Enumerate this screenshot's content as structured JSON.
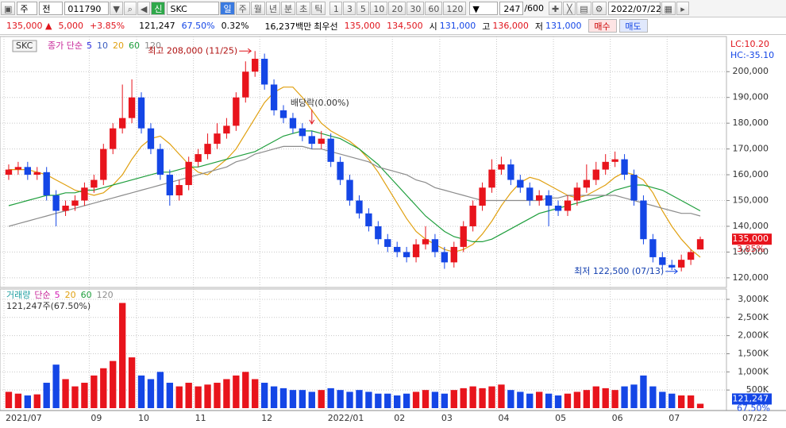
{
  "toolbar": {
    "market": "주",
    "scope": "전",
    "code": "011790",
    "badge": "신",
    "name": "SKC",
    "periods": [
      "일",
      "주",
      "월",
      "년",
      "분",
      "초",
      "틱"
    ],
    "intervals": [
      "1",
      "3",
      "5",
      "10",
      "20",
      "30",
      "60",
      "120"
    ],
    "count": "247",
    "total": "/600",
    "date": "2022/07/22"
  },
  "quote": {
    "price": "135,000 ▲",
    "change": "5,000",
    "rate": "+3.85%",
    "volume": "121,247",
    "volume_rate": "67.50%",
    "turnover": "0.32%",
    "amount": "16,237백만",
    "best_label": "최우선",
    "ask": "135,000",
    "bid": "134,500",
    "open_label": "시",
    "open": "131,000",
    "high_label": "고",
    "high": "136,000",
    "low_label": "저",
    "low": "131,000",
    "buy": "매수",
    "sell": "매도"
  },
  "chart_data": [
    {
      "type": "candlestick",
      "name": "SKC",
      "ma_label": "종가 단순",
      "categories": [
        "2021/07",
        null,
        null,
        null,
        null,
        null,
        null,
        null,
        null,
        "09",
        null,
        null,
        null,
        null,
        "10",
        null,
        null,
        null,
        null,
        null,
        "11",
        null,
        null,
        null,
        null,
        null,
        null,
        "12",
        null,
        null,
        null,
        null,
        null,
        null,
        "2022/01",
        null,
        null,
        null,
        null,
        null,
        null,
        "02",
        null,
        null,
        null,
        null,
        "03",
        null,
        null,
        null,
        null,
        null,
        "04",
        null,
        null,
        null,
        null,
        null,
        "05",
        null,
        null,
        null,
        null,
        null,
        "06",
        null,
        null,
        null,
        null,
        null,
        "07",
        null,
        null,
        null
      ],
      "open": [
        160000,
        162000,
        163000,
        160000,
        161000,
        152000,
        146000,
        148000,
        150000,
        155000,
        158000,
        170000,
        178000,
        182000,
        190000,
        178000,
        170000,
        160000,
        152000,
        156000,
        165000,
        168000,
        172000,
        176000,
        179000,
        190000,
        200000,
        205000,
        195000,
        185000,
        182000,
        178000,
        175000,
        172000,
        174000,
        165000,
        158000,
        150000,
        145000,
        140000,
        135000,
        132000,
        130000,
        128000,
        133000,
        135000,
        130000,
        126000,
        132000,
        140000,
        148000,
        155000,
        162000,
        164000,
        158000,
        155000,
        150000,
        152000,
        148000,
        146000,
        150000,
        155000,
        158000,
        162000,
        165000,
        166000,
        160000,
        150000,
        135000,
        128000,
        125000,
        124000,
        127000,
        131000
      ],
      "high": [
        164000,
        165000,
        165000,
        163000,
        163000,
        154000,
        150000,
        152000,
        157000,
        160000,
        172000,
        180000,
        195000,
        197000,
        192000,
        180000,
        172000,
        162000,
        158000,
        167000,
        170000,
        176000,
        180000,
        182000,
        192000,
        204000,
        208000,
        207000,
        197000,
        187000,
        184000,
        180000,
        177000,
        177000,
        176000,
        167000,
        160000,
        152000,
        147000,
        142000,
        137000,
        134000,
        132000,
        135000,
        140000,
        137000,
        132000,
        134000,
        142000,
        150000,
        157000,
        166000,
        167000,
        166000,
        160000,
        157000,
        154000,
        154000,
        150000,
        152000,
        157000,
        164000,
        165000,
        168000,
        169000,
        168000,
        162000,
        152000,
        137000,
        130000,
        127000,
        129000,
        131000,
        136000
      ],
      "low": [
        158000,
        160000,
        158000,
        158000,
        150000,
        140000,
        144000,
        146000,
        148000,
        153000,
        156000,
        168000,
        176000,
        180000,
        176000,
        168000,
        158000,
        148000,
        150000,
        154000,
        163000,
        166000,
        170000,
        174000,
        177000,
        188000,
        198000,
        193000,
        183000,
        180000,
        176000,
        173000,
        170000,
        170000,
        163000,
        156000,
        148000,
        143000,
        138000,
        133000,
        130000,
        128000,
        126000,
        126000,
        131000,
        128000,
        123500,
        124000,
        130000,
        138000,
        146000,
        153000,
        160000,
        156000,
        153000,
        148000,
        148000,
        140000,
        144000,
        144000,
        148000,
        153000,
        156000,
        160000,
        163000,
        158000,
        148000,
        133000,
        126000,
        123500,
        123000,
        122500,
        125000,
        131000
      ],
      "close": [
        162000,
        163000,
        160000,
        161000,
        152000,
        146000,
        148000,
        150000,
        155000,
        158000,
        170000,
        178000,
        182000,
        190000,
        178000,
        170000,
        160000,
        152000,
        156000,
        165000,
        168000,
        172000,
        176000,
        179000,
        190000,
        200000,
        205000,
        195000,
        185000,
        182000,
        178000,
        175000,
        172000,
        174000,
        165000,
        158000,
        150000,
        145000,
        140000,
        135000,
        132000,
        130000,
        128000,
        133000,
        135000,
        130000,
        126000,
        132000,
        140000,
        148000,
        155000,
        162000,
        164000,
        158000,
        155000,
        150000,
        152000,
        148000,
        146000,
        150000,
        155000,
        158000,
        162000,
        165000,
        166000,
        160000,
        150000,
        135000,
        128000,
        125000,
        124000,
        127000,
        130000,
        135000
      ],
      "up_color": "#e8141c",
      "down_color": "#1446e6",
      "series": [
        {
          "name": "5",
          "color": "#2a2ae0"
        },
        {
          "name": "10",
          "color": "#3a5cc0"
        },
        {
          "name": "20",
          "color": "#e0a010",
          "values": [
            162000,
            162000,
            162000,
            161000,
            160000,
            158000,
            156000,
            154000,
            153000,
            152000,
            153000,
            156000,
            160000,
            166000,
            171000,
            174000,
            175000,
            172000,
            168000,
            164000,
            161000,
            160000,
            163000,
            166000,
            170000,
            176000,
            182000,
            188000,
            192000,
            194000,
            194000,
            190000,
            185000,
            180000,
            177000,
            175000,
            173000,
            170000,
            166000,
            161000,
            155000,
            149000,
            143000,
            138000,
            135000,
            133000,
            131000,
            130000,
            131000,
            133000,
            137000,
            142000,
            148000,
            153000,
            157000,
            159000,
            158000,
            156000,
            154000,
            152000,
            151000,
            152000,
            154000,
            156000,
            159000,
            161000,
            160000,
            158000,
            153000,
            146000,
            140000,
            135000,
            131000,
            128000
          ]
        },
        {
          "name": "60",
          "color": "#1e9e3c",
          "values": [
            148000,
            149000,
            150000,
            151000,
            152000,
            152000,
            153000,
            153000,
            154000,
            154000,
            155000,
            156000,
            157000,
            158000,
            159000,
            160000,
            161000,
            161000,
            162000,
            163000,
            163000,
            164000,
            165000,
            166000,
            167000,
            168000,
            169000,
            171000,
            173000,
            175000,
            176000,
            177000,
            177000,
            176000,
            175000,
            174000,
            172000,
            170000,
            167000,
            164000,
            160000,
            156000,
            152000,
            148000,
            144000,
            141000,
            138000,
            136000,
            135000,
            134000,
            134000,
            135000,
            137000,
            139000,
            141000,
            143000,
            145000,
            146000,
            147000,
            148000,
            149000,
            150000,
            151000,
            152000,
            154000,
            155000,
            156000,
            156000,
            155000,
            154000,
            152000,
            150000,
            148000,
            146000
          ]
        },
        {
          "name": "120",
          "color": "#8c8c8c",
          "values": [
            140000,
            141000,
            142000,
            143000,
            144000,
            145000,
            146000,
            147000,
            148000,
            149000,
            150000,
            151000,
            152000,
            153000,
            154000,
            155000,
            156000,
            157000,
            158000,
            159000,
            160000,
            161000,
            162000,
            163000,
            165000,
            166000,
            168000,
            169000,
            170000,
            171000,
            171000,
            171000,
            170000,
            170000,
            169000,
            168000,
            167000,
            166000,
            165000,
            163000,
            162000,
            161000,
            160000,
            158000,
            157000,
            155000,
            154000,
            153000,
            152000,
            151000,
            150000,
            150000,
            150000,
            150000,
            150000,
            150000,
            150000,
            151000,
            151000,
            152000,
            152000,
            152000,
            152000,
            152000,
            152000,
            151000,
            150000,
            149000,
            148000,
            147000,
            146000,
            145000,
            145000,
            144000
          ]
        }
      ],
      "ylim": [
        117500,
        208700
      ],
      "yticks": [
        {
          "value": 120000,
          "label": "120,000"
        },
        {
          "value": 130000,
          "label": "130,000"
        },
        {
          "value": 140000,
          "label": "140,000"
        },
        {
          "value": 150000,
          "label": "150,000"
        },
        {
          "value": 160000,
          "label": "160,000"
        },
        {
          "value": 170000,
          "label": "170,000"
        },
        {
          "value": 180000,
          "label": "180,000"
        },
        {
          "value": 190000,
          "label": "190,000"
        },
        {
          "value": 200000,
          "label": "200,000"
        }
      ],
      "grid": true,
      "last_label": "135,000",
      "last_rate": "3.85%",
      "lc_label": "LC:10.20",
      "hc_label": "HC:-35.10",
      "annotations": [
        {
          "text": "최고 208,000 (11/25)"
        },
        {
          "text": "배당락(0.00%)"
        },
        {
          "text": "최저 122,500 (07/13)"
        }
      ]
    },
    {
      "type": "bar",
      "name": "거래량",
      "ma_label": "단순",
      "series": [
        {
          "name": "5",
          "color": "#d21eb4"
        },
        {
          "name": "20",
          "color": "#e0a010"
        },
        {
          "name": "60",
          "color": "#1e9e3c"
        },
        {
          "name": "120",
          "color": "#8c8c8c"
        }
      ],
      "values": [
        450000,
        400000,
        350000,
        380000,
        700000,
        1200000,
        800000,
        600000,
        700000,
        900000,
        1100000,
        1300000,
        2900000,
        1400000,
        900000,
        800000,
        1000000,
        700000,
        600000,
        700000,
        600000,
        650000,
        700000,
        800000,
        900000,
        1000000,
        800000,
        700000,
        600000,
        550000,
        500000,
        500000,
        450000,
        500000,
        550000,
        500000,
        450000,
        500000,
        450000,
        400000,
        400000,
        350000,
        400000,
        450000,
        500000,
        450000,
        400000,
        500000,
        550000,
        600000,
        550000,
        600000,
        650000,
        500000,
        450000,
        400000,
        450000,
        400000,
        350000,
        400000,
        450000,
        500000,
        600000,
        550000,
        500000,
        600000,
        650000,
        900000,
        600000,
        450000,
        400000,
        350000,
        350000,
        121247
      ],
      "ylim": [
        0,
        3240000
      ],
      "yticks": [
        {
          "value": 500000,
          "label": "500K"
        },
        {
          "value": 1000000,
          "label": "1,000K"
        },
        {
          "value": 1500000,
          "label": "1,500K"
        },
        {
          "value": 2000000,
          "label": "2,000K"
        },
        {
          "value": 2500000,
          "label": "2,500K"
        },
        {
          "value": 3000000,
          "label": "3,000K"
        }
      ],
      "grid": true,
      "summary": "121,247주(67.50%)",
      "last_label": "121,247",
      "last_rate": "67.50%",
      "x_end_label": "07/22"
    }
  ]
}
